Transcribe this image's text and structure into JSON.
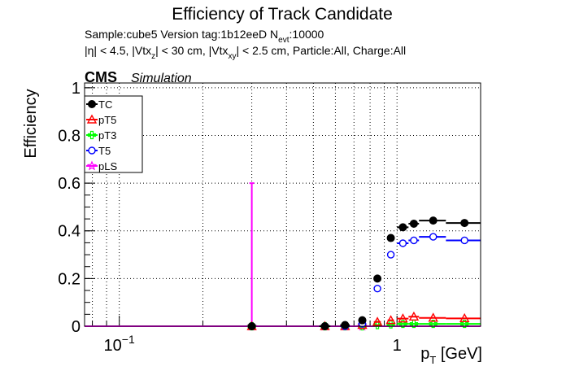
{
  "chart_data": {
    "type": "scatter",
    "title": "Efficiency of Track Candidate",
    "subtitle_sample": "Sample:cube5   Version tag:1b12eeD  N",
    "subtitle_nevt_sub": "evt",
    "subtitle_nevt_val": ":10000",
    "cuts": {
      "p1": "|η| < 4.5, |Vtx",
      "s1": "z",
      "p2": "| < 30 cm, |Vtx",
      "s2": "xy",
      "p3": "| < 2.5 cm, Particle:All, Charge:All"
    },
    "cms_label": "CMS",
    "simulation_label": "Simulation",
    "ylabel": "Efficiency",
    "xlabel_main": "p",
    "xlabel_sub": "T",
    "xlabel_unit": " [GeV]",
    "x_scale": "log",
    "xlim": [
      0.075,
      2.0
    ],
    "ylim": [
      0,
      1.02
    ],
    "grid": true,
    "legend_position": "top-left",
    "y_ticks": [
      {
        "value": 0,
        "label": "0"
      },
      {
        "value": 0.2,
        "label": "0.2"
      },
      {
        "value": 0.4,
        "label": "0.4"
      },
      {
        "value": 0.6,
        "label": "0.6"
      },
      {
        "value": 0.8,
        "label": "0.8"
      },
      {
        "value": 1.0,
        "label": "1"
      }
    ],
    "x_ticks_major": [
      {
        "value": 0.1,
        "label_base": "10",
        "label_exp": "−1"
      },
      {
        "value": 1.0,
        "label_base": "1",
        "label_exp": ""
      }
    ],
    "series": [
      {
        "name": "TC",
        "color": "#000000",
        "marker": "filled-circle",
        "points": [
          {
            "x": 0.3,
            "xlo": 0.297,
            "xhi": 0.303,
            "y": 0.0
          },
          {
            "x": 0.55,
            "xlo": 0.525,
            "xhi": 0.575,
            "y": 0.0
          },
          {
            "x": 0.65,
            "xlo": 0.625,
            "xhi": 0.675,
            "y": 0.005
          },
          {
            "x": 0.75,
            "xlo": 0.725,
            "xhi": 0.775,
            "y": 0.025
          },
          {
            "x": 0.85,
            "xlo": 0.825,
            "xhi": 0.875,
            "y": 0.2
          },
          {
            "x": 0.95,
            "xlo": 0.925,
            "xhi": 0.975,
            "y": 0.37
          },
          {
            "x": 1.05,
            "xlo": 1.0,
            "xhi": 1.1,
            "y": 0.415
          },
          {
            "x": 1.15,
            "xlo": 1.1,
            "xhi": 1.2,
            "y": 0.43
          },
          {
            "x": 1.35,
            "xlo": 1.2,
            "xhi": 1.5,
            "y": 0.443
          },
          {
            "x": 1.75,
            "xlo": 1.5,
            "xhi": 2.0,
            "y": 0.433
          }
        ]
      },
      {
        "name": "pT5",
        "color": "#ff0000",
        "marker": "open-triangle",
        "points": [
          {
            "x": 0.3,
            "xlo": 0.297,
            "xhi": 0.303,
            "y": 0.0
          },
          {
            "x": 0.55,
            "xlo": 0.525,
            "xhi": 0.575,
            "y": 0.0
          },
          {
            "x": 0.65,
            "xlo": 0.625,
            "xhi": 0.675,
            "y": 0.0
          },
          {
            "x": 0.75,
            "xlo": 0.725,
            "xhi": 0.775,
            "y": 0.005
          },
          {
            "x": 0.85,
            "xlo": 0.825,
            "xhi": 0.875,
            "y": 0.018
          },
          {
            "x": 0.95,
            "xlo": 0.925,
            "xhi": 0.975,
            "y": 0.025
          },
          {
            "x": 1.05,
            "xlo": 1.0,
            "xhi": 1.1,
            "y": 0.032
          },
          {
            "x": 1.15,
            "xlo": 1.1,
            "xhi": 1.2,
            "y": 0.04
          },
          {
            "x": 1.35,
            "xlo": 1.2,
            "xhi": 1.5,
            "y": 0.035
          },
          {
            "x": 1.75,
            "xlo": 1.5,
            "xhi": 2.0,
            "y": 0.033
          }
        ]
      },
      {
        "name": "pT3",
        "color": "#00ff00",
        "marker": "open-cross",
        "points": [
          {
            "x": 0.3,
            "xlo": 0.297,
            "xhi": 0.303,
            "y": 0.0
          },
          {
            "x": 0.55,
            "xlo": 0.525,
            "xhi": 0.575,
            "y": 0.0
          },
          {
            "x": 0.65,
            "xlo": 0.625,
            "xhi": 0.675,
            "y": 0.0
          },
          {
            "x": 0.75,
            "xlo": 0.725,
            "xhi": 0.775,
            "y": 0.0
          },
          {
            "x": 0.85,
            "xlo": 0.825,
            "xhi": 0.875,
            "y": 0.005
          },
          {
            "x": 0.95,
            "xlo": 0.925,
            "xhi": 0.975,
            "y": 0.008
          },
          {
            "x": 1.05,
            "xlo": 1.0,
            "xhi": 1.1,
            "y": 0.01
          },
          {
            "x": 1.15,
            "xlo": 1.1,
            "xhi": 1.2,
            "y": 0.01
          },
          {
            "x": 1.35,
            "xlo": 1.2,
            "xhi": 1.5,
            "y": 0.01
          },
          {
            "x": 1.75,
            "xlo": 1.5,
            "xhi": 2.0,
            "y": 0.01
          }
        ]
      },
      {
        "name": "T5",
        "color": "#0000ff",
        "marker": "open-circle",
        "points": [
          {
            "x": 0.3,
            "xlo": 0.297,
            "xhi": 0.303,
            "y": 0.0
          },
          {
            "x": 0.55,
            "xlo": 0.525,
            "xhi": 0.575,
            "y": 0.0
          },
          {
            "x": 0.65,
            "xlo": 0.625,
            "xhi": 0.675,
            "y": 0.0
          },
          {
            "x": 0.75,
            "xlo": 0.725,
            "xhi": 0.775,
            "y": 0.01
          },
          {
            "x": 0.85,
            "xlo": 0.825,
            "xhi": 0.875,
            "y": 0.158
          },
          {
            "x": 0.95,
            "xlo": 0.925,
            "xhi": 0.975,
            "y": 0.3
          },
          {
            "x": 1.05,
            "xlo": 1.0,
            "xhi": 1.1,
            "y": 0.348
          },
          {
            "x": 1.15,
            "xlo": 1.1,
            "xhi": 1.2,
            "y": 0.36
          },
          {
            "x": 1.35,
            "xlo": 1.2,
            "xhi": 1.5,
            "y": 0.375
          },
          {
            "x": 1.75,
            "xlo": 1.5,
            "xhi": 2.0,
            "y": 0.36
          }
        ]
      },
      {
        "name": "pLS",
        "color": "#ff00ff",
        "marker": "open-star",
        "line_y": 0.0,
        "error_bar": {
          "x": 0.3,
          "ylo": 0.0,
          "yhi": 0.6
        },
        "points": [
          {
            "x": 0.3,
            "xlo": 0.297,
            "xhi": 0.303,
            "y": 0.0
          },
          {
            "x": 0.55,
            "xlo": 0.525,
            "xhi": 0.575,
            "y": 0.0
          },
          {
            "x": 0.65,
            "xlo": 0.625,
            "xhi": 0.675,
            "y": 0.0
          },
          {
            "x": 0.75,
            "xlo": 0.725,
            "xhi": 0.775,
            "y": 0.0
          }
        ]
      }
    ]
  }
}
